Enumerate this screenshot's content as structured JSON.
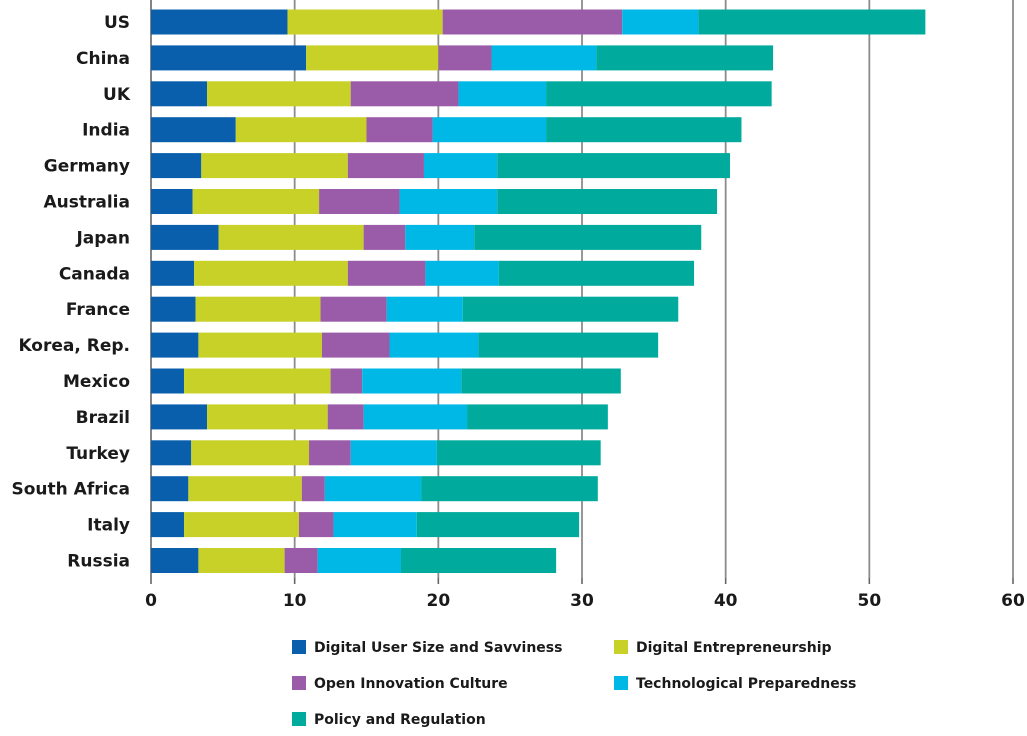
{
  "chart_data": {
    "type": "bar",
    "orientation": "horizontal",
    "stacked": true,
    "categories": [
      "US",
      "China",
      "UK",
      "India",
      "Germany",
      "Australia",
      "Japan",
      "Canada",
      "France",
      "Korea, Rep.",
      "Mexico",
      "Brazil",
      "Turkey",
      "South Africa",
      "Italy",
      "Russia"
    ],
    "series": [
      {
        "name": "Digital User Size and Savviness",
        "color": "#0a5fad",
        "values": [
          9.5,
          10.8,
          3.9,
          5.9,
          3.5,
          2.9,
          4.7,
          3.0,
          3.1,
          3.3,
          2.3,
          3.9,
          2.8,
          2.6,
          2.3,
          3.3
        ]
      },
      {
        "name": "Digital Entrepreneurship",
        "color": "#c8d127",
        "values": [
          10.8,
          9.2,
          10.0,
          9.1,
          10.2,
          8.8,
          10.1,
          10.7,
          8.7,
          8.6,
          10.2,
          8.4,
          8.2,
          7.9,
          8.0,
          6.0
        ]
      },
      {
        "name": "Open Innovation Culture",
        "color": "#9a5ba8",
        "values": [
          12.5,
          3.7,
          7.5,
          4.6,
          5.3,
          5.6,
          2.9,
          5.4,
          4.6,
          4.7,
          2.2,
          2.5,
          2.9,
          1.6,
          2.4,
          2.3
        ]
      },
      {
        "name": "Technological Preparedness",
        "color": "#00b8e6",
        "values": [
          5.3,
          7.3,
          6.1,
          7.9,
          5.1,
          6.8,
          4.8,
          5.1,
          5.3,
          6.2,
          6.9,
          7.2,
          6.0,
          6.7,
          5.8,
          5.8
        ]
      },
      {
        "name": "Policy and Regulation",
        "color": "#00ab9d",
        "values": [
          15.8,
          12.3,
          15.7,
          13.6,
          16.2,
          15.3,
          15.8,
          13.6,
          15.0,
          12.5,
          11.1,
          9.8,
          11.4,
          12.3,
          11.3,
          10.8
        ]
      }
    ],
    "xlim": [
      0,
      60
    ],
    "xticks": [
      0,
      10,
      20,
      30,
      40,
      50,
      60
    ],
    "title": "",
    "xlabel": "",
    "ylabel": "",
    "grid": "vertical",
    "legend_position": "bottom"
  }
}
